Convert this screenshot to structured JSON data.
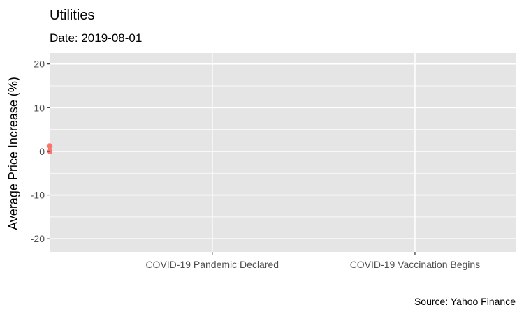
{
  "chart_data": {
    "type": "scatter",
    "title": "Utilities",
    "subtitle": "Date: 2019-08-01",
    "ylabel": "Average Price Increase (%)",
    "xlabel": "",
    "caption": "Source: Yahoo Finance",
    "ylim": [
      -23,
      22.5
    ],
    "yticks": [
      20,
      10,
      0,
      -10,
      -20
    ],
    "ytick_labels": [
      "20",
      "10",
      "0",
      "-10",
      "-20"
    ],
    "x_domain": [
      "2019-08-01",
      "2021-05-01"
    ],
    "xticks": [
      {
        "date": "2020-03-11",
        "label": "COVID-19 Pandemic Declared"
      },
      {
        "date": "2020-12-14",
        "label": "COVID-19 Vaccination Begins"
      }
    ],
    "grid": true,
    "points": [
      {
        "date": "2019-08-01",
        "value": 1.2
      },
      {
        "date": "2019-08-01",
        "value": 0.0
      }
    ],
    "point_color": "#F8766D"
  }
}
